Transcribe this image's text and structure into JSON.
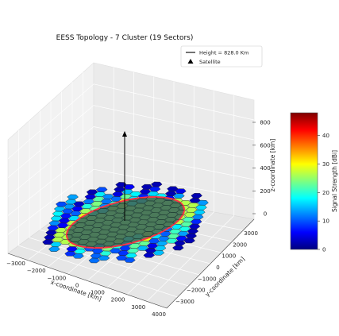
{
  "chart_data": {
    "type": "scatter",
    "title": "EESS Topology - 7 Cluster (19 Sectors)",
    "xlabel": "x-coordinate [km]",
    "ylabel": "y-coordinate [km]",
    "zlabel": "z-coordinate [km]",
    "x_ticks": [
      "−3000",
      "−2000",
      "−1000",
      "0",
      "1000",
      "2000",
      "3000",
      "4000"
    ],
    "y_ticks": [
      "−3000",
      "−2000",
      "−1000",
      "0",
      "1000",
      "2000",
      "3000"
    ],
    "z_ticks": [
      "0",
      "200",
      "400",
      "600",
      "800"
    ],
    "xlim": [
      -3500,
      4000
    ],
    "ylim": [
      -3500,
      3500
    ],
    "zlim": [
      0,
      900
    ],
    "satellite": {
      "x": 0,
      "y": 0,
      "z": 828.0,
      "marker": "triangle"
    },
    "legend": {
      "position": "top-right",
      "entries": [
        {
          "label": "Height = 828.0 Km",
          "kind": "line"
        },
        {
          "label": "Satellite",
          "kind": "triangle"
        }
      ]
    },
    "colorbar": {
      "label": "Signal Strength [dBi]",
      "ticks": [
        "0",
        "10",
        "20",
        "30",
        "40"
      ],
      "min": 0,
      "max": 48,
      "colormap": "jet"
    },
    "footprint": {
      "shape": "ellipse",
      "fill": "#3f6b5c",
      "edge": "#ff3344"
    }
  }
}
